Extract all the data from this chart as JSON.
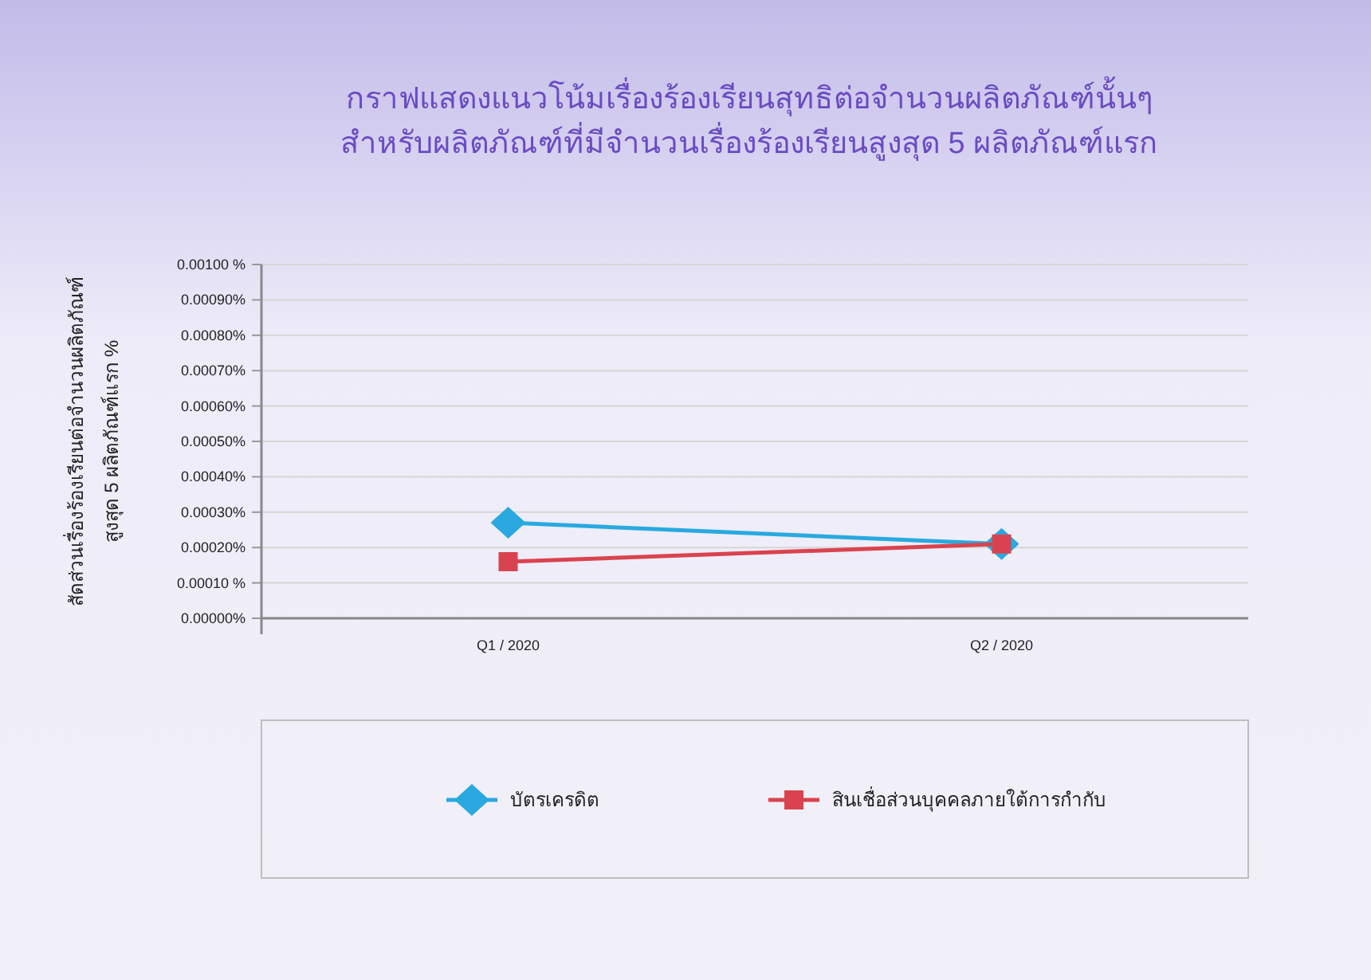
{
  "chart_data": {
    "type": "line",
    "title": "กราฟแสดงแนวโน้มเรื่องร้องเรียนสุทธิต่อจำนวนผลิตภัณฑ์นั้นๆ\nสำหรับผลิตภัณฑ์ที่มีจำนวนเรื่องร้องเรียนสูงสุด 5 ผลิตภัณฑ์แรก",
    "ylabel": "สัดส่วนเรื่องร้องเรียนต่อจำนวนผลิตภัณฑ์\nสูงสุด 5 ผลิตภัณฑ์แรก   %",
    "categories": [
      "Q1 / 2020",
      "Q2 / 2020"
    ],
    "series": [
      {
        "name": "บัตรเครดิต",
        "color": "#29a9df",
        "marker": "diamond",
        "values": [
          0.00027,
          0.00021
        ]
      },
      {
        "name": "สินเชื่อส่วนบุคคลภายใต้การกำกับ",
        "color": "#d9434f",
        "marker": "square",
        "values": [
          0.00016,
          0.00021
        ]
      }
    ],
    "ylim": [
      0,
      0.001
    ],
    "yticks": [
      {
        "value": 0,
        "label": "0.00000%"
      },
      {
        "value": 0.0001,
        "label": "0.00010 %"
      },
      {
        "value": 0.0002,
        "label": "0.00020%"
      },
      {
        "value": 0.0003,
        "label": "0.00030%"
      },
      {
        "value": 0.0004,
        "label": "0.00040%"
      },
      {
        "value": 0.0005,
        "label": "0.00050%"
      },
      {
        "value": 0.0006,
        "label": "0.00060%"
      },
      {
        "value": 0.0007,
        "label": "0.00070%"
      },
      {
        "value": 0.0008,
        "label": "0.00080%"
      },
      {
        "value": 0.0009,
        "label": "0.00090%"
      },
      {
        "value": 0.001,
        "label": "0.00100 %"
      }
    ],
    "grid": "y",
    "legend": "bottom",
    "line_style": "solid"
  }
}
